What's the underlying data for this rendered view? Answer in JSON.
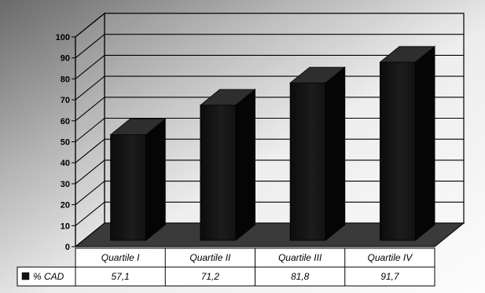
{
  "chart_data": {
    "type": "bar",
    "categories": [
      "Quartile I",
      "Quartile II",
      "Quartile III",
      "Quartile IV"
    ],
    "series": [
      {
        "name": "% CAD",
        "values": [
          57.1,
          71.2,
          81.8,
          91.7
        ]
      }
    ],
    "value_labels": [
      "57,1",
      "71,2",
      "81,8",
      "91,7"
    ],
    "y_ticks": [
      0,
      10,
      20,
      30,
      40,
      50,
      60,
      70,
      80,
      90,
      100
    ],
    "ylim": [
      0,
      100
    ],
    "grid": true,
    "legend": "data-table-left",
    "bar_color": "#141414",
    "floor_color": "#3a3a3a"
  }
}
